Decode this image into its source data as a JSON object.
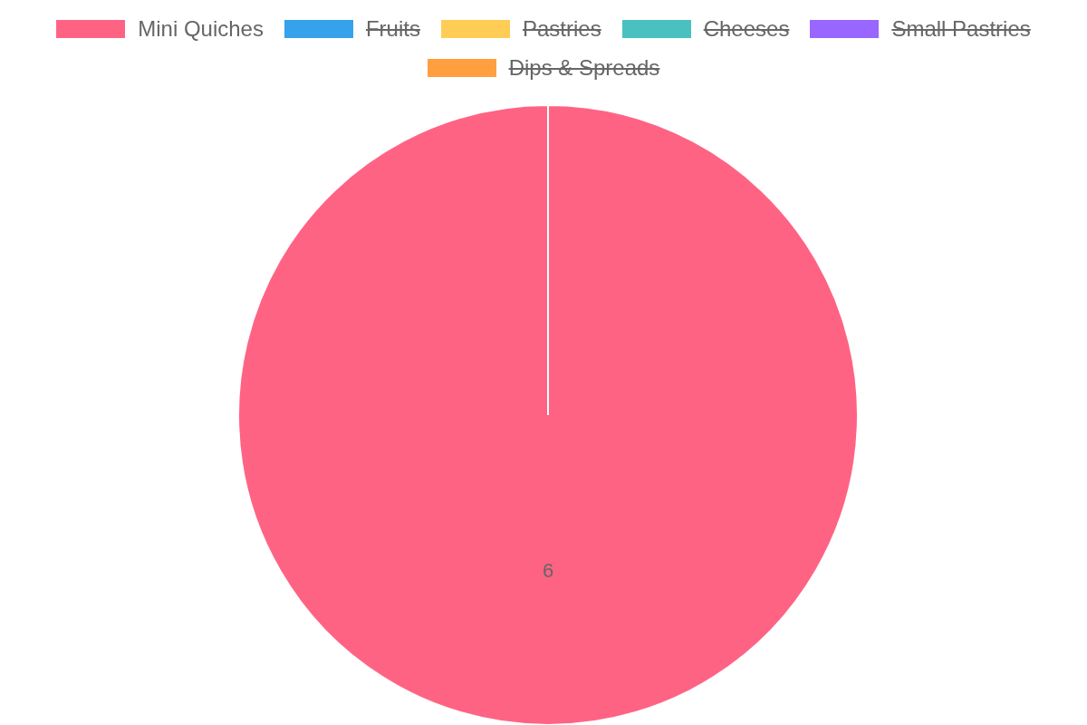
{
  "chart_data": {
    "type": "pie",
    "categories": [
      "Mini Quiches",
      "Fruits",
      "Pastries",
      "Cheeses",
      "Small Pastries",
      "Dips & Spreads"
    ],
    "values": [
      6,
      null,
      null,
      null,
      null,
      null
    ],
    "colors": [
      "#ff6384",
      "#36a2eb",
      "#ffcd56",
      "#4bc0c0",
      "#9966ff",
      "#ff9f40"
    ],
    "legend": "top",
    "data_labels": true
  }
}
